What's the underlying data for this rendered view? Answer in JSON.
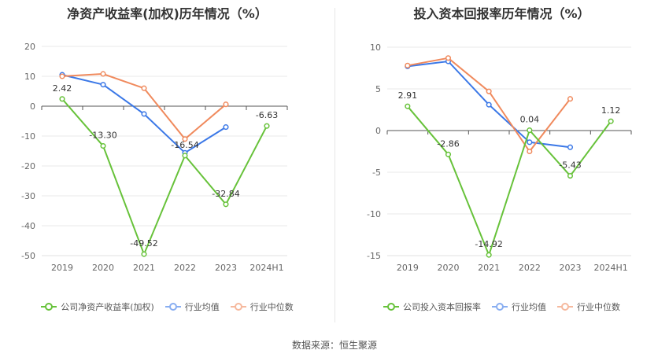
{
  "source": "数据来源：恒生聚源",
  "chart_data": [
    {
      "type": "line",
      "title": "净资产收益率(加权)历年情况（%）",
      "categories": [
        "2019",
        "2020",
        "2021",
        "2022",
        "2023",
        "2024H1"
      ],
      "ylim": [
        -50,
        20
      ],
      "yticks": [
        20,
        10,
        0,
        -10,
        -20,
        -30,
        -40,
        -50
      ],
      "grid": true,
      "legend_position": "bottom",
      "series": [
        {
          "name": "公司净资产收益率(加权)",
          "color": "#67c23a",
          "values": [
            2.42,
            -13.3,
            -49.52,
            -16.54,
            -32.84,
            -6.63
          ],
          "labels": [
            "2.42",
            "-13.30",
            "-49.52",
            "-16.54",
            "-32.84",
            "-6.63"
          ]
        },
        {
          "name": "行业均值",
          "color": "#3b78e7",
          "values": [
            10.5,
            7.2,
            -2.6,
            -15.6,
            -7.0,
            null
          ]
        },
        {
          "name": "行业中位数",
          "color": "#f08a5d",
          "values": [
            10.0,
            10.8,
            6.0,
            -11.0,
            0.6,
            null
          ]
        }
      ]
    },
    {
      "type": "line",
      "title": "投入资本回报率历年情况（%）",
      "categories": [
        "2019",
        "2020",
        "2021",
        "2022",
        "2023",
        "2024H1"
      ],
      "ylim": [
        -15,
        10
      ],
      "yticks": [
        10,
        5,
        0,
        -5,
        -10,
        -15
      ],
      "grid": true,
      "legend_position": "bottom",
      "series": [
        {
          "name": "公司投入资本回报率",
          "color": "#67c23a",
          "values": [
            2.91,
            -2.86,
            -14.92,
            0.04,
            -5.43,
            1.12
          ],
          "labels": [
            "2.91",
            "-2.86",
            "-14.92",
            "0.04",
            "-5.43",
            "1.12"
          ]
        },
        {
          "name": "行业均值",
          "color": "#3b78e7",
          "values": [
            7.7,
            8.3,
            3.1,
            -1.4,
            -2.0,
            null
          ]
        },
        {
          "name": "行业中位数",
          "color": "#f08a5d",
          "values": [
            7.8,
            8.7,
            4.7,
            -2.5,
            3.8,
            null
          ]
        }
      ]
    }
  ]
}
